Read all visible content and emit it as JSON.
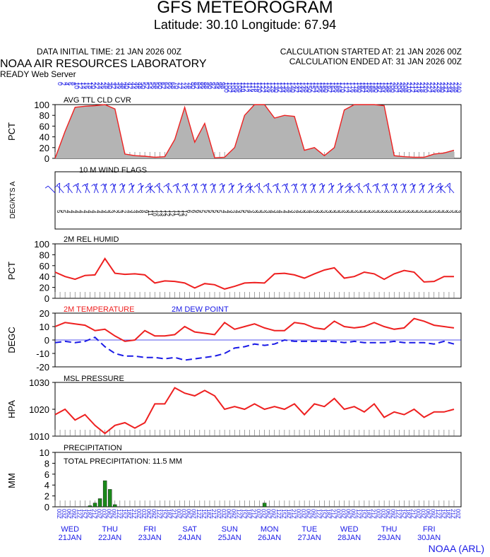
{
  "header": {
    "title": "GFS METEOROGRAM",
    "subtitle": "Latitude: 30.10 Longitude:  67.94",
    "data_initial_time": "DATA INITIAL TIME: 21 JAN 2026 00Z",
    "calc_started": "CALCULATION STARTED AT: 21 JAN 2026 00Z",
    "calc_ended": "CALCULATION ENDED AT: 31 JAN 2026 00Z",
    "lab": "NOAA AIR RESOURCES LABORATORY",
    "server": "READY Web Server"
  },
  "footer": {
    "credit": "NOAA (ARL)"
  },
  "colors": {
    "line": "#ee2020",
    "dew": "#1a1ae6",
    "fill": "#b4b4b4",
    "precip": "#1a8a1a",
    "text_blue": "#1a1ae6"
  },
  "chart_data": [
    {
      "type": "area",
      "title": "AVG TTL CLD CVR",
      "ylabel": "PCT",
      "ylim": [
        0,
        100
      ],
      "yticks": [
        "0",
        "20",
        "40",
        "60",
        "80",
        "100"
      ],
      "x_hours": [
        0,
        6,
        12,
        18,
        24,
        30,
        36,
        42,
        48,
        54,
        60,
        66,
        72,
        78,
        84,
        90,
        96,
        102,
        108,
        114,
        120,
        126,
        132,
        138,
        144,
        150,
        156,
        162,
        168,
        174,
        180,
        186,
        192,
        198,
        204,
        210,
        216,
        222,
        228,
        234,
        240
      ],
      "values": [
        0,
        50,
        95,
        97,
        98,
        100,
        92,
        8,
        5,
        4,
        2,
        3,
        35,
        95,
        30,
        65,
        1,
        2,
        20,
        80,
        100,
        100,
        75,
        80,
        78,
        15,
        20,
        5,
        20,
        90,
        100,
        100,
        100,
        98,
        5,
        3,
        2,
        2,
        8,
        10,
        15
      ]
    },
    {
      "type": "table",
      "title": "10 M  WIND FLAGS",
      "ylabel": "DEG/KTS  A",
      "speed_labels": [
        "5",
        "5",
        "4",
        "4",
        "4",
        "4",
        "4",
        "4",
        "4",
        "4",
        "4",
        "3",
        "3",
        "2",
        "3",
        "2",
        "4",
        "3",
        "4",
        "8",
        "9",
        "11",
        "10",
        "13",
        "13",
        "12",
        "12",
        "11",
        "13",
        "12",
        "6",
        "6",
        "6",
        "5",
        "5",
        "5",
        "5",
        "5",
        "4",
        "4",
        "3",
        "4",
        "5",
        "5",
        "4",
        "3",
        "3",
        "3",
        "3",
        "4",
        "3",
        "4",
        "4",
        "4",
        "3",
        "4",
        "3",
        "3",
        "4",
        "3",
        "3",
        "3",
        "3",
        "3",
        "3",
        "3",
        "3",
        "3",
        "3",
        "3",
        "3",
        "3",
        "3",
        "3",
        "3",
        "3",
        "3",
        "3",
        "3",
        "3",
        "3",
        "3",
        "3",
        "3",
        "3",
        "3",
        "3",
        "3",
        "3",
        "3",
        "3",
        "3",
        "3"
      ]
    },
    {
      "type": "line",
      "title": "2M REL HUMID",
      "ylabel": "PCT",
      "ylim": [
        0,
        100
      ],
      "yticks": [
        "0",
        "20",
        "40",
        "60",
        "80",
        "100"
      ],
      "x_hours": [
        0,
        6,
        12,
        18,
        24,
        30,
        36,
        42,
        48,
        54,
        60,
        66,
        72,
        78,
        84,
        90,
        96,
        102,
        108,
        114,
        120,
        126,
        132,
        138,
        144,
        150,
        156,
        162,
        168,
        174,
        180,
        186,
        192,
        198,
        204,
        210,
        216,
        222,
        228,
        234,
        240
      ],
      "values": [
        48,
        40,
        35,
        42,
        43,
        73,
        46,
        44,
        45,
        43,
        28,
        32,
        31,
        28,
        19,
        27,
        25,
        17,
        22,
        28,
        29,
        28,
        45,
        46,
        43,
        37,
        45,
        52,
        56,
        37,
        40,
        48,
        45,
        35,
        45,
        51,
        48,
        30,
        31,
        40,
        40
      ]
    },
    {
      "type": "line",
      "title": "2M TEMPERATURE",
      "ylabel": "DEGC",
      "ylim": [
        -20,
        20
      ],
      "yticks": [
        "-20",
        "-10",
        "0",
        "10",
        "20"
      ],
      "series": [
        {
          "name": "2M TEMPERATURE",
          "x_hours": [
            0,
            6,
            12,
            18,
            24,
            30,
            36,
            42,
            48,
            54,
            60,
            66,
            72,
            78,
            84,
            90,
            96,
            102,
            108,
            114,
            120,
            126,
            132,
            138,
            144,
            150,
            156,
            162,
            168,
            174,
            180,
            186,
            192,
            198,
            204,
            210,
            216,
            222,
            228,
            234,
            240
          ],
          "values": [
            10,
            13,
            12,
            11,
            7,
            8,
            3,
            -1,
            0,
            7,
            3,
            3,
            4,
            10,
            6,
            5,
            4,
            13,
            8,
            10,
            12,
            9,
            7,
            7,
            13,
            12,
            9,
            8,
            14,
            10,
            9,
            10,
            13,
            10,
            8,
            9,
            16,
            14,
            11,
            10,
            9
          ]
        },
        {
          "name": "2M  DEW POINT",
          "x_hours": [
            0,
            6,
            12,
            18,
            24,
            30,
            36,
            42,
            48,
            54,
            60,
            66,
            72,
            78,
            84,
            90,
            96,
            102,
            108,
            114,
            120,
            126,
            132,
            138,
            144,
            150,
            156,
            162,
            168,
            174,
            180,
            186,
            192,
            198,
            204,
            210,
            216,
            222,
            228,
            234,
            240
          ],
          "values": [
            -2,
            -1,
            -2,
            -1,
            2,
            -5,
            -10,
            -12,
            -12,
            -13,
            -13,
            -14,
            -13,
            -15,
            -14,
            -13,
            -12,
            -10,
            -6,
            -5,
            -3,
            -4,
            -3,
            0,
            -1,
            -1,
            -1,
            -1,
            -1,
            -2,
            -1,
            -2,
            -2,
            -2,
            -1,
            -2,
            -2,
            -2,
            -3,
            -1,
            -3
          ]
        }
      ]
    },
    {
      "type": "line",
      "title": "MSL PRESSURE",
      "ylabel": "HPA",
      "ylim": [
        1010,
        1030
      ],
      "yticks": [
        "1010",
        "1020",
        "1030"
      ],
      "x_hours": [
        0,
        6,
        12,
        18,
        24,
        30,
        36,
        42,
        48,
        54,
        60,
        66,
        72,
        78,
        84,
        90,
        96,
        102,
        108,
        114,
        120,
        126,
        132,
        138,
        144,
        150,
        156,
        162,
        168,
        174,
        180,
        186,
        192,
        198,
        204,
        210,
        216,
        222,
        228,
        234,
        240
      ],
      "values": [
        1018,
        1020,
        1016,
        1018,
        1014,
        1011,
        1014,
        1015,
        1013,
        1015,
        1022,
        1022,
        1028,
        1026,
        1025,
        1027,
        1025,
        1020,
        1021,
        1020,
        1022,
        1020,
        1021,
        1020,
        1022,
        1018,
        1022,
        1021,
        1024,
        1020,
        1021,
        1019,
        1022,
        1017,
        1019,
        1018,
        1020,
        1017,
        1019,
        1019,
        1020
      ]
    },
    {
      "type": "bar",
      "title": "PRECIPITATION",
      "subtitle": "TOTAL PRECIPITATION:  11.5 MM",
      "ylabel": "MM",
      "ylim": [
        0,
        10
      ],
      "yticks": [
        "0",
        "2",
        "4",
        "6",
        "8",
        "10"
      ],
      "bars": [
        {
          "hour": 21,
          "value": 0.2
        },
        {
          "hour": 24,
          "value": 0.7
        },
        {
          "hour": 27,
          "value": 1.5
        },
        {
          "hour": 30,
          "value": 4.8
        },
        {
          "hour": 33,
          "value": 3.2
        },
        {
          "hour": 36,
          "value": 0.4
        },
        {
          "hour": 126,
          "value": 0.7
        }
      ]
    }
  ],
  "time_axis": {
    "hour_labels": [
      "00Z",
      "03Z",
      "06Z",
      "09Z",
      "12Z",
      "15Z",
      "18Z",
      "21Z"
    ],
    "days": [
      {
        "dow": "WED",
        "date": "21JAN"
      },
      {
        "dow": "THU",
        "date": "22JAN"
      },
      {
        "dow": "FRI",
        "date": "23JAN"
      },
      {
        "dow": "SAT",
        "date": "24JAN"
      },
      {
        "dow": "SUN",
        "date": "25JAN"
      },
      {
        "dow": "MON",
        "date": "26JAN"
      },
      {
        "dow": "TUE",
        "date": "27JAN"
      },
      {
        "dow": "WED",
        "date": "28JAN"
      },
      {
        "dow": "THU",
        "date": "29JAN"
      },
      {
        "dow": "FRI",
        "date": "30JAN"
      }
    ],
    "top_labels": [
      "0",
      "2",
      "4",
      "6",
      "8",
      "10",
      "12",
      "14",
      "16",
      "18",
      "20",
      "22",
      "24",
      "26",
      "28",
      "30",
      "32",
      "34",
      "36",
      "38",
      "40",
      "42",
      "44",
      "46",
      "48",
      "50",
      "52",
      "54",
      "56",
      "58",
      "60",
      "62",
      "64",
      "66",
      "68",
      "70",
      "72",
      "74",
      "76",
      "78",
      "80",
      "82",
      "84",
      "86",
      "88",
      "90",
      "92",
      "94",
      "96",
      "98",
      "100",
      "102",
      "104",
      "106",
      "108",
      "110",
      "112",
      "114",
      "116",
      "118",
      "120",
      "122",
      "124",
      "126",
      "128",
      "130",
      "132",
      "134",
      "136",
      "138",
      "140",
      "142",
      "144",
      "146",
      "148",
      "150",
      "152",
      "154",
      "156",
      "158",
      "160",
      "162",
      "164",
      "166",
      "168",
      "170",
      "172",
      "174",
      "176",
      "178",
      "180",
      "182",
      "184",
      "186",
      "188",
      "190",
      "192",
      "194",
      "196",
      "198",
      "200",
      "202",
      "204",
      "206",
      "208",
      "210",
      "212",
      "214",
      "216",
      "218",
      "220",
      "222",
      "224",
      "226",
      "228",
      "230",
      "232",
      "234",
      "236",
      "238",
      "240"
    ]
  }
}
